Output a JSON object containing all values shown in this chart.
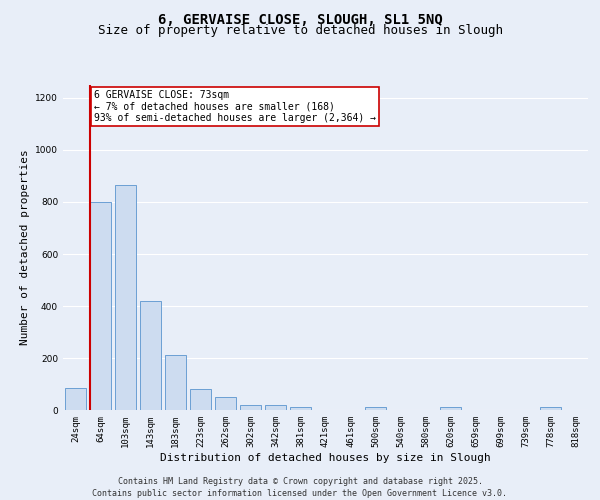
{
  "title1": "6, GERVAISE CLOSE, SLOUGH, SL1 5NQ",
  "title2": "Size of property relative to detached houses in Slough",
  "xlabel": "Distribution of detached houses by size in Slough",
  "ylabel": "Number of detached properties",
  "categories": [
    "24sqm",
    "64sqm",
    "103sqm",
    "143sqm",
    "183sqm",
    "223sqm",
    "262sqm",
    "302sqm",
    "342sqm",
    "381sqm",
    "421sqm",
    "461sqm",
    "500sqm",
    "540sqm",
    "580sqm",
    "620sqm",
    "659sqm",
    "699sqm",
    "739sqm",
    "778sqm",
    "818sqm"
  ],
  "values": [
    85,
    800,
    865,
    420,
    210,
    80,
    50,
    20,
    20,
    10,
    0,
    0,
    10,
    0,
    0,
    10,
    0,
    0,
    0,
    10,
    0
  ],
  "bar_color": "#cddcf0",
  "bar_edge_color": "#6b9fd4",
  "bg_color": "#e8eef8",
  "grid_color": "#ffffff",
  "vline_color": "#cc0000",
  "annotation_text": "6 GERVAISE CLOSE: 73sqm\n← 7% of detached houses are smaller (168)\n93% of semi-detached houses are larger (2,364) →",
  "annotation_box_color": "#ffffff",
  "annotation_box_edge": "#cc0000",
  "ylim": [
    0,
    1250
  ],
  "yticks": [
    0,
    200,
    400,
    600,
    800,
    1000,
    1200
  ],
  "footer1": "Contains HM Land Registry data © Crown copyright and database right 2025.",
  "footer2": "Contains public sector information licensed under the Open Government Licence v3.0.",
  "title1_fontsize": 10,
  "title2_fontsize": 9,
  "tick_fontsize": 6.5,
  "xlabel_fontsize": 8,
  "ylabel_fontsize": 8,
  "footer_fontsize": 6,
  "annotation_fontsize": 7
}
